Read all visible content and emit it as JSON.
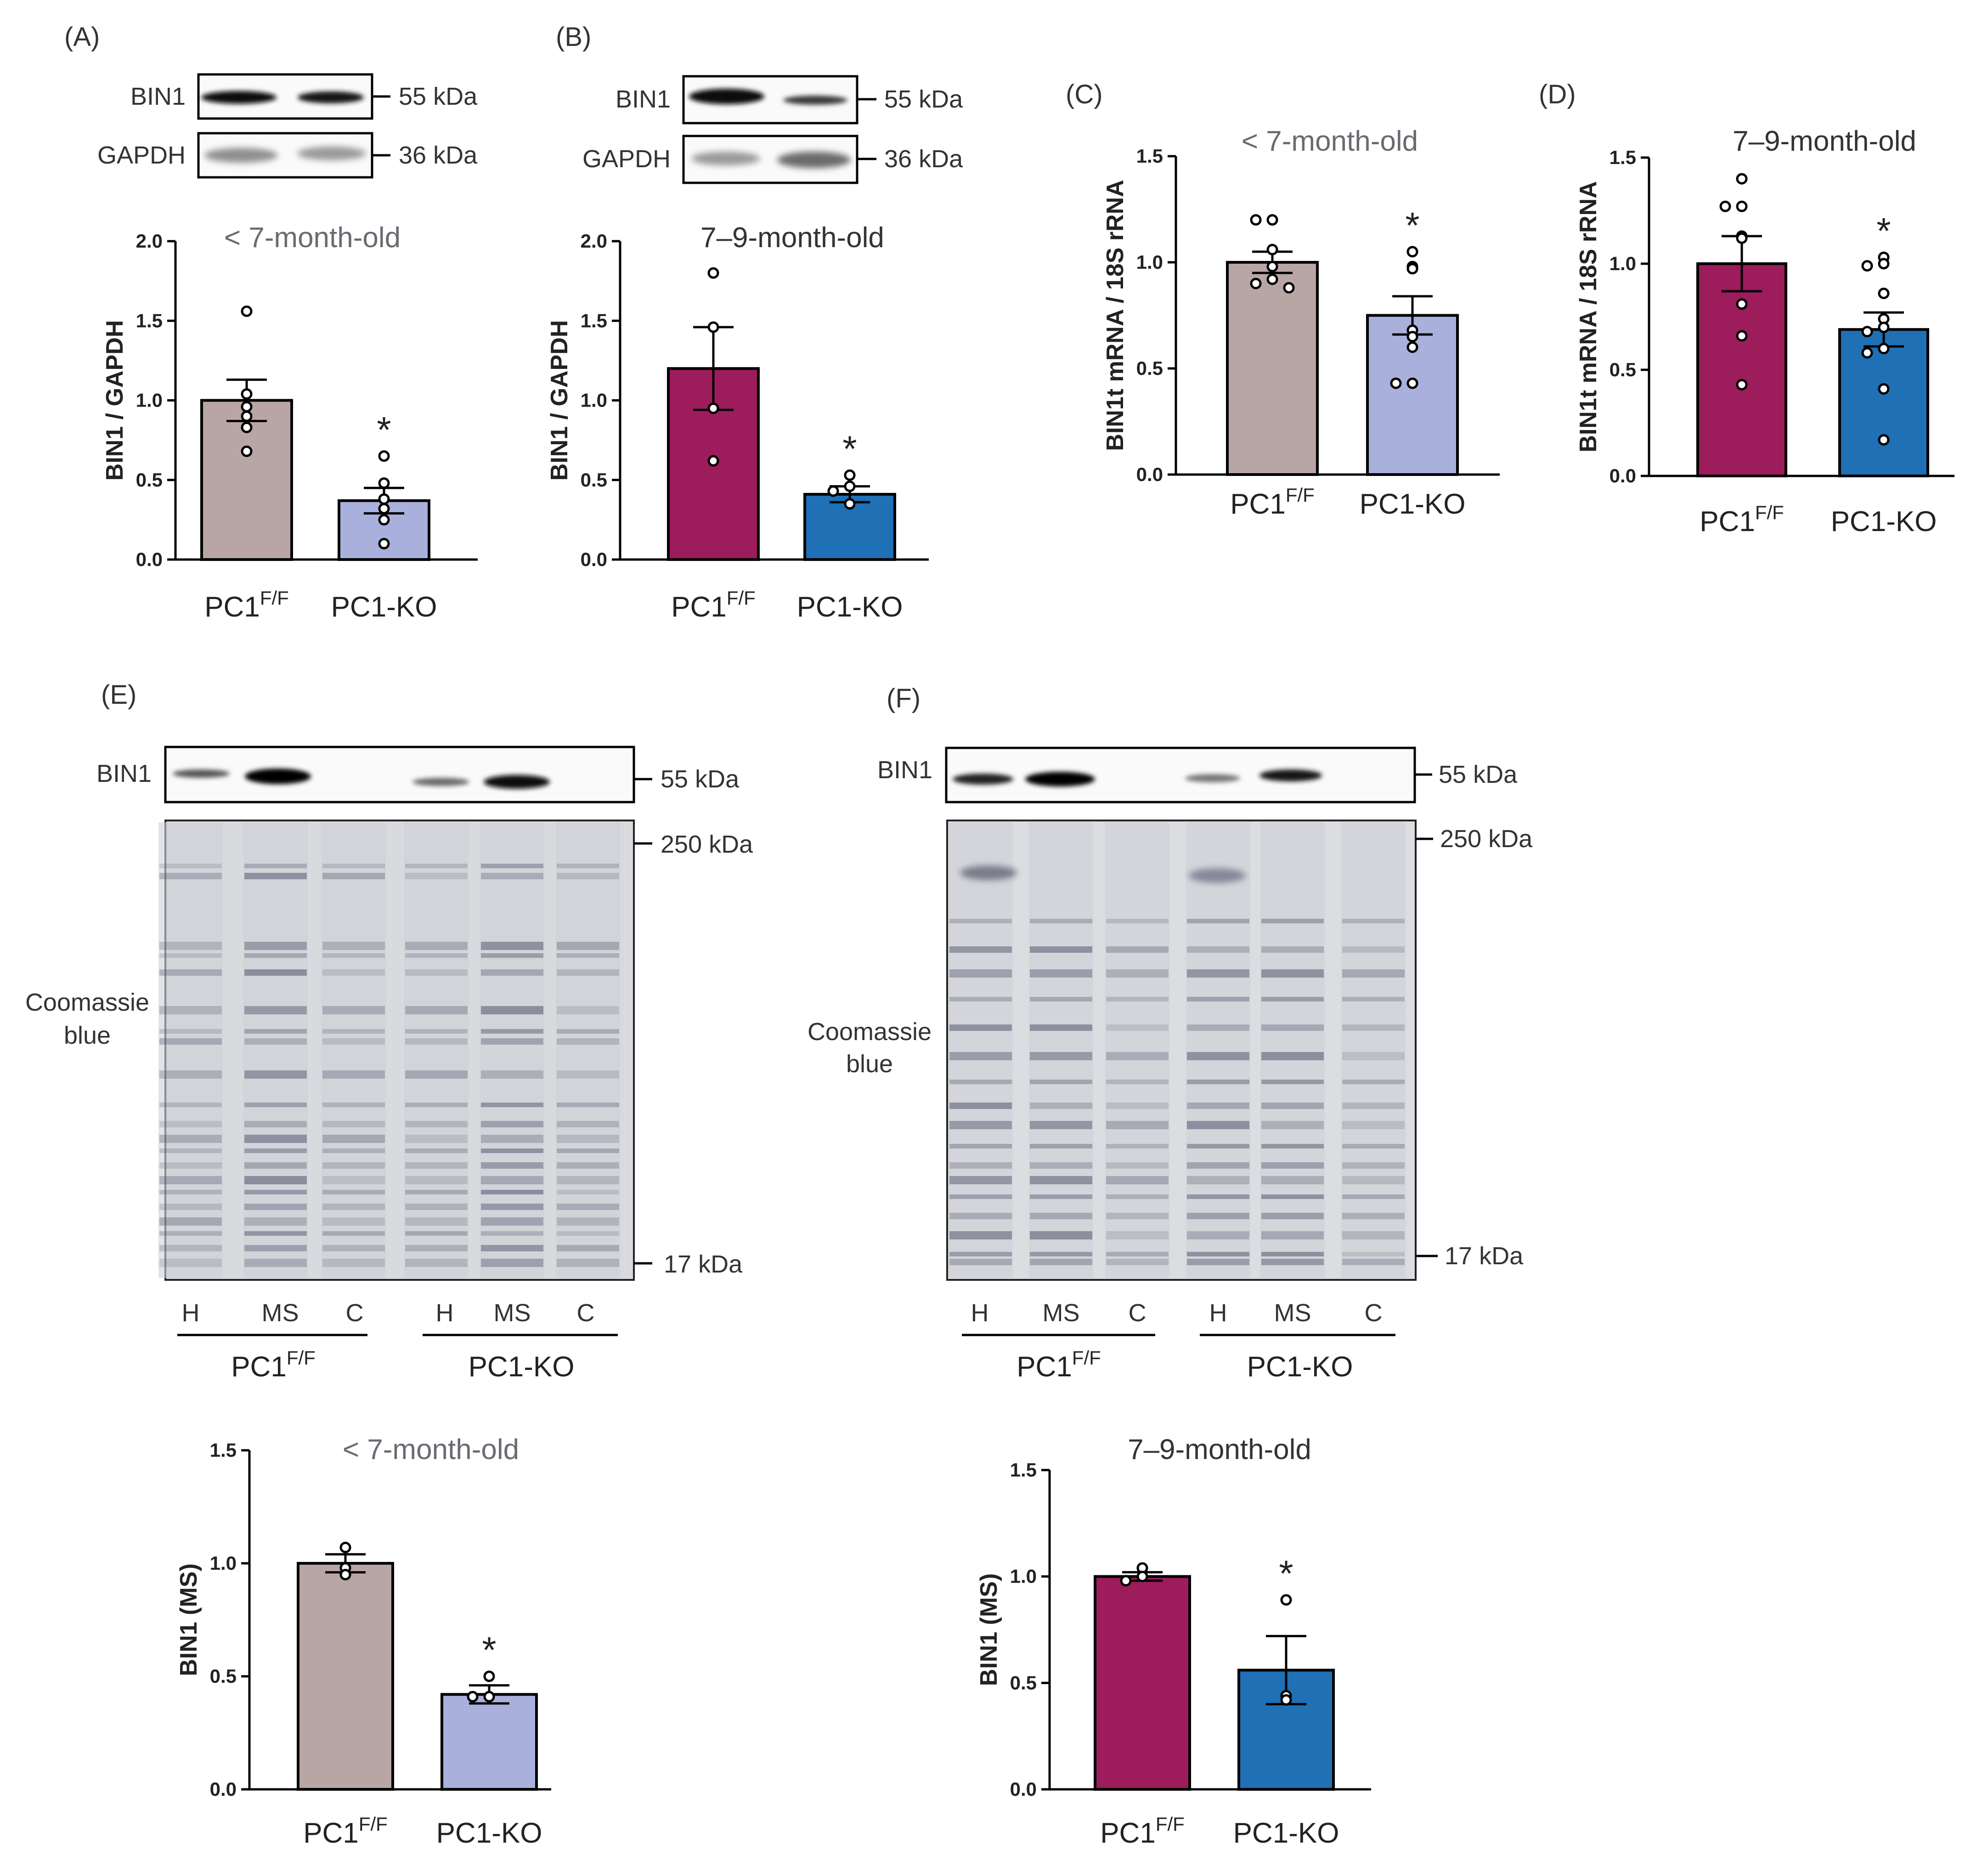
{
  "figure_panels": {
    "A": "(A)",
    "B": "(B)",
    "C": "(C)",
    "D": "(D)",
    "E": "(E)",
    "F": "(F)"
  },
  "blots": {
    "A": {
      "bin1_label": "BIN1",
      "gapdh_label": "GAPDH",
      "bin1_kda": "55 kDa",
      "gapdh_kda": "36 kDa"
    },
    "B": {
      "bin1_label": "BIN1",
      "gapdh_label": "GAPDH",
      "bin1_kda": "55 kDa",
      "gapdh_kda": "36 kDa"
    },
    "E": {
      "bin1_label": "BIN1",
      "stain_label_1": "Coomassie",
      "stain_label_2": "blue",
      "kda_55": "55 kDa",
      "kda_250": "250 kDa",
      "kda_17": "17 kDa",
      "lanes": [
        "H",
        "MS",
        "C",
        "H",
        "MS",
        "C"
      ]
    },
    "F": {
      "bin1_label": "BIN1",
      "stain_label_1": "Coomassie",
      "stain_label_2": "blue",
      "kda_55": "55 kDa",
      "kda_250": "250 kDa",
      "kda_17": "17 kDa",
      "lanes": [
        "H",
        "MS",
        "C",
        "H",
        "MS",
        "C"
      ]
    }
  },
  "groups": {
    "ctrl_base": "PC1",
    "ctrl_sup": "F/F",
    "ko": "PC1-KO"
  },
  "colors": {
    "young_ctrl": "#b8a6a5",
    "young_ko": "#a9b0db",
    "old_ctrl": "#9c1c5c",
    "old_ko": "#1f70b4",
    "axis": "#000000",
    "subtitle_young": "#6a6a72",
    "subtitle_old": "#333333"
  },
  "chart_data": [
    {
      "panel": "A",
      "type": "bar",
      "title": "< 7-month-old",
      "ylabel": "BIN1 / GAPDH",
      "ylim": [
        0,
        2.0
      ],
      "yticks": [
        "0.0",
        "0.5",
        "1.0",
        "1.5",
        "2.0"
      ],
      "categories": [
        "PC1F/F",
        "PC1-KO"
      ],
      "values": [
        1.0,
        0.37
      ],
      "sem": [
        0.13,
        0.08
      ],
      "points": [
        [
          1.56,
          1.04,
          0.96,
          0.9,
          0.83,
          0.68
        ],
        [
          0.65,
          0.48,
          0.38,
          0.32,
          0.25,
          0.1
        ]
      ],
      "significance": [
        "",
        "*"
      ],
      "palette": "young"
    },
    {
      "panel": "B",
      "type": "bar",
      "title": "7–9-month-old",
      "ylabel": "BIN1 / GAPDH",
      "ylim": [
        0,
        2.0
      ],
      "yticks": [
        "0.0",
        "0.5",
        "1.0",
        "1.5",
        "2.0"
      ],
      "categories": [
        "PC1F/F",
        "PC1-KO"
      ],
      "values": [
        1.2,
        0.41
      ],
      "sem": [
        0.26,
        0.05
      ],
      "points": [
        [
          1.8,
          1.46,
          0.95,
          0.62
        ],
        [
          0.53,
          0.46,
          0.43,
          0.35
        ]
      ],
      "significance": [
        "",
        "*"
      ],
      "palette": "old"
    },
    {
      "panel": "C",
      "type": "bar",
      "title": "< 7-month-old",
      "ylabel": "BIN1t mRNA / 18S rRNA",
      "ylim": [
        0,
        1.5
      ],
      "yticks": [
        "0.0",
        "0.5",
        "1.0",
        "1.5"
      ],
      "categories": [
        "PC1F/F",
        "PC1-KO"
      ],
      "values": [
        1.0,
        0.75
      ],
      "sem": [
        0.05,
        0.09
      ],
      "points": [
        [
          1.2,
          1.2,
          1.06,
          0.98,
          0.92,
          0.9,
          0.88
        ],
        [
          1.05,
          0.98,
          0.97,
          0.68,
          0.65,
          0.6,
          0.43,
          0.43
        ]
      ],
      "significance": [
        "",
        "*"
      ],
      "palette": "young"
    },
    {
      "panel": "D",
      "type": "bar",
      "title": "7–9-month-old",
      "ylabel": "BIN1t mRNA / 18S rRNA",
      "ylim": [
        0,
        1.5
      ],
      "yticks": [
        "0.0",
        "0.5",
        "1.0",
        "1.5"
      ],
      "categories": [
        "PC1F/F",
        "PC1-KO"
      ],
      "values": [
        1.0,
        0.69
      ],
      "sem": [
        0.13,
        0.08
      ],
      "points": [
        [
          1.4,
          1.27,
          1.27,
          1.13,
          1.12,
          0.81,
          0.66,
          0.43
        ],
        [
          1.03,
          1.0,
          0.99,
          0.86,
          0.74,
          0.7,
          0.68,
          0.6,
          0.58,
          0.41,
          0.17
        ]
      ],
      "significance": [
        "",
        "*"
      ],
      "palette": "old"
    },
    {
      "panel": "E",
      "type": "bar",
      "title": "< 7-month-old",
      "ylabel": "BIN1 (MS)",
      "ylim": [
        0,
        1.5
      ],
      "yticks": [
        "0.0",
        "0.5",
        "1.0",
        "1.5"
      ],
      "categories": [
        "PC1F/F",
        "PC1-KO"
      ],
      "values": [
        1.0,
        0.42
      ],
      "sem": [
        0.04,
        0.04
      ],
      "points": [
        [
          1.07,
          0.98,
          0.95
        ],
        [
          0.5,
          0.41,
          0.41
        ]
      ],
      "significance": [
        "",
        "*"
      ],
      "palette": "young"
    },
    {
      "panel": "F",
      "type": "bar",
      "title": "7–9-month-old",
      "ylabel": "BIN1 (MS)",
      "ylim": [
        0,
        1.5
      ],
      "yticks": [
        "0.0",
        "0.5",
        "1.0",
        "1.5"
      ],
      "categories": [
        "PC1F/F",
        "PC1-KO"
      ],
      "values": [
        1.0,
        0.56
      ],
      "sem": [
        0.02,
        0.16
      ],
      "points": [
        [
          1.04,
          1.0,
          0.98
        ],
        [
          0.89,
          0.44,
          0.42
        ]
      ],
      "significance": [
        "",
        "*"
      ],
      "palette": "old"
    }
  ]
}
